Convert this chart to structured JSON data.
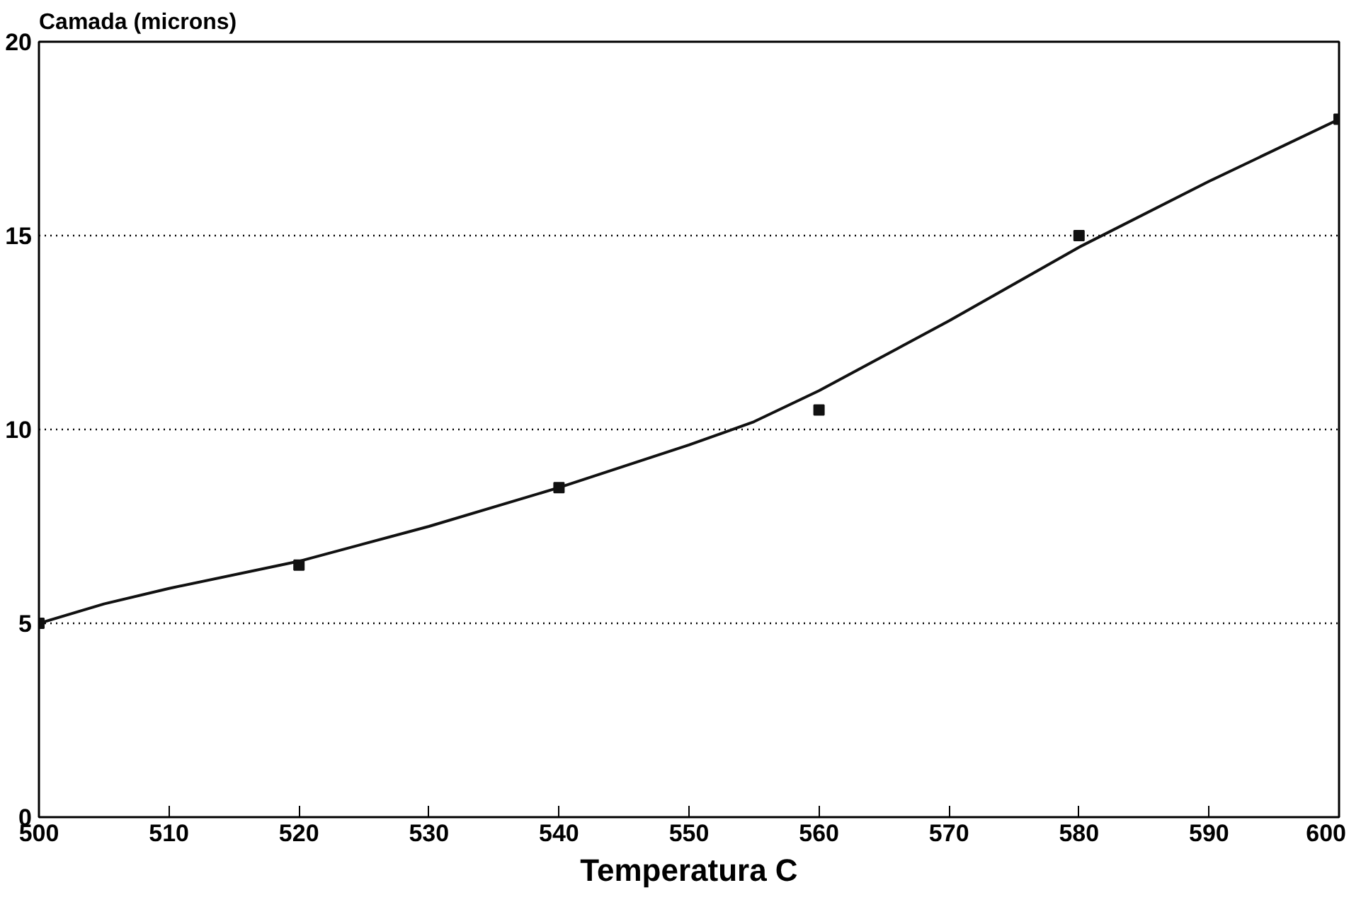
{
  "chart_data": {
    "type": "line",
    "ylabel": "Camada (microns)",
    "xlabel": "Temperatura C",
    "x": [
      500,
      520,
      540,
      560,
      580,
      600
    ],
    "series": [
      {
        "type": "scatter",
        "color": "#111111",
        "marker": "square",
        "values": [
          5,
          6.5,
          8.5,
          10.5,
          15,
          18
        ]
      },
      {
        "color": "#111111",
        "line_style": "solid",
        "x": [
          500,
          505,
          510,
          520,
          530,
          540,
          550,
          555,
          560,
          570,
          580,
          590,
          600
        ],
        "values": [
          5,
          5.5,
          5.9,
          6.6,
          7.5,
          8.5,
          9.6,
          10.2,
          11.0,
          12.8,
          14.7,
          16.4,
          18
        ]
      }
    ],
    "xlim": [
      500,
      600
    ],
    "xticks": [
      500,
      510,
      520,
      530,
      540,
      550,
      560,
      570,
      580,
      590,
      600
    ],
    "ylim": [
      0,
      20
    ],
    "yticks": [
      0,
      5,
      10,
      15,
      20
    ],
    "grid": "y"
  }
}
